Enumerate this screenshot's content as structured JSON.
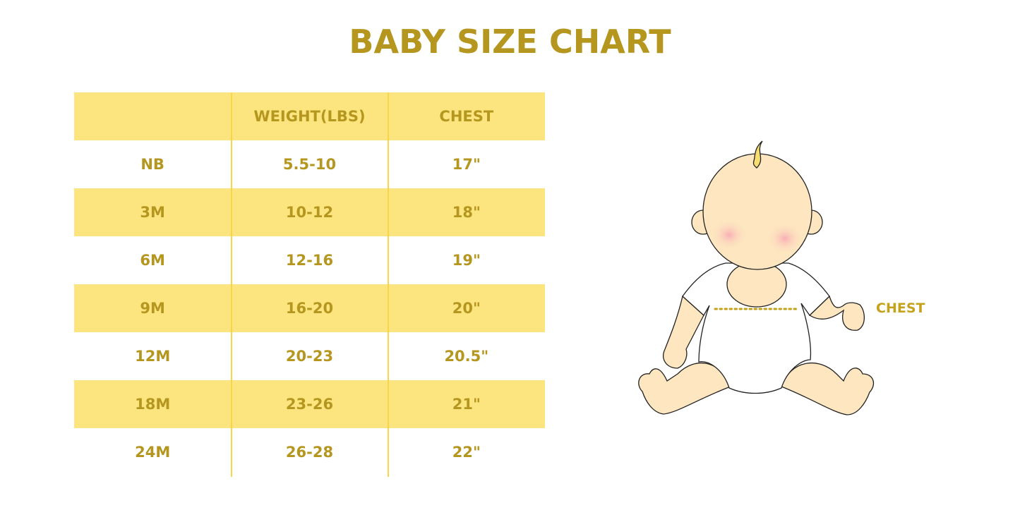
{
  "title": "BABY SIZE CHART",
  "table": {
    "headers": [
      "",
      "WEIGHT(LBS)",
      "CHEST"
    ],
    "rows": [
      [
        "NB",
        "5.5-10",
        "17\""
      ],
      [
        "3M",
        "10-12",
        "18\""
      ],
      [
        "6M",
        "12-16",
        "19\""
      ],
      [
        "9M",
        "16-20",
        "20\""
      ],
      [
        "12M",
        "20-23",
        "20.5\""
      ],
      [
        "18M",
        "23-26",
        "21\""
      ],
      [
        "24M",
        "26-28",
        "22\""
      ]
    ]
  },
  "illustration": {
    "chest_label": "CHEST"
  },
  "colors": {
    "text": "#b5961e",
    "stripe": "#fce57e",
    "divider": "#f9d648",
    "skin": "#fde6c0"
  }
}
